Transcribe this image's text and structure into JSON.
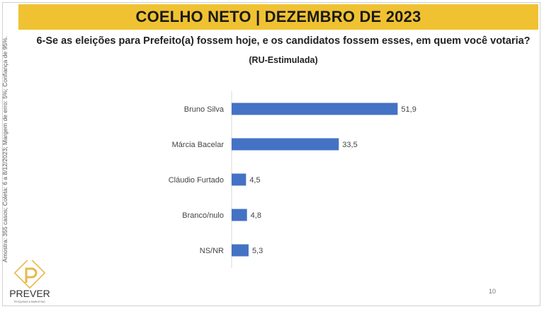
{
  "header": {
    "title": "COELHO NETO | DEZEMBRO DE 2023"
  },
  "question": "6-Se as eleições para Prefeito(a) fossem hoje, e os candidatos fossem esses, em quem você votaria?",
  "subtitle": "(RU-Estimulada)",
  "side_note": "Amostra: 355 casos; Coleta: 6 a 8/12/2023; Margem de erro: 5%; Confiança de 95%.",
  "logo": {
    "name": "PREVER",
    "tagline": "PESQUISAS & MARKETING"
  },
  "page_number": "10",
  "colors": {
    "banner": "#f0c232",
    "bar": "#4472c4",
    "logo": "#e8b84a"
  },
  "chart_data": {
    "type": "bar",
    "orientation": "horizontal",
    "categories": [
      "Bruno Silva",
      "Márcia Bacelar",
      "Cláudio Furtado",
      "Branco/nulo",
      "NS/NR"
    ],
    "values": [
      51.9,
      33.5,
      4.5,
      4.8,
      5.3
    ],
    "value_labels": [
      "51,9",
      "33,5",
      "4,5",
      "4,8",
      "5,3"
    ],
    "xlim": [
      0,
      60
    ],
    "grid": false,
    "legend": "none"
  }
}
